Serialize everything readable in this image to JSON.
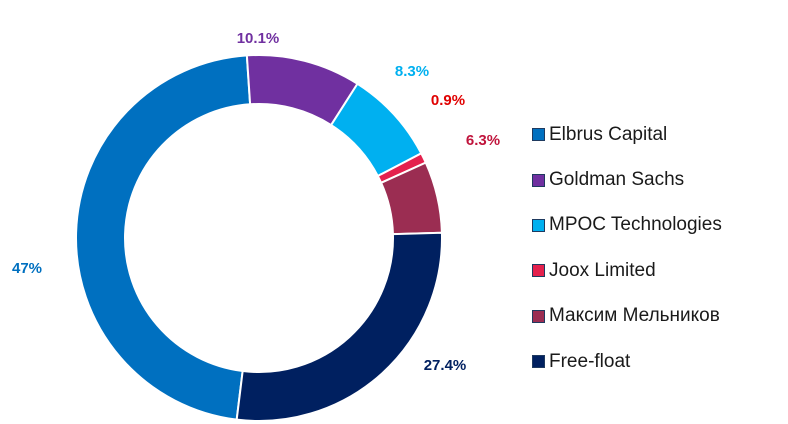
{
  "chart_data": {
    "type": "pie",
    "donut": true,
    "title": "",
    "legend_position": "right",
    "categories": [
      "Elbrus Capital",
      "Goldman Sachs",
      "MPOC Technologies",
      "Joox Limited",
      "Максим Мельников",
      "Free-float"
    ],
    "values": [
      47,
      10.1,
      8.3,
      0.9,
      6.3,
      27.4
    ],
    "labels": [
      "47%",
      "10.1%",
      "8.3%",
      "0.9%",
      "6.3%",
      "27.4%"
    ],
    "colors": [
      "#0070c0",
      "#7030a0",
      "#00b0f0",
      "#e4214d",
      "#9b2d52",
      "#002060"
    ],
    "label_colors": [
      "#0070c0",
      "#7030a0",
      "#00b0f0",
      "#e00000",
      "#c0143c",
      "#002060"
    ]
  }
}
